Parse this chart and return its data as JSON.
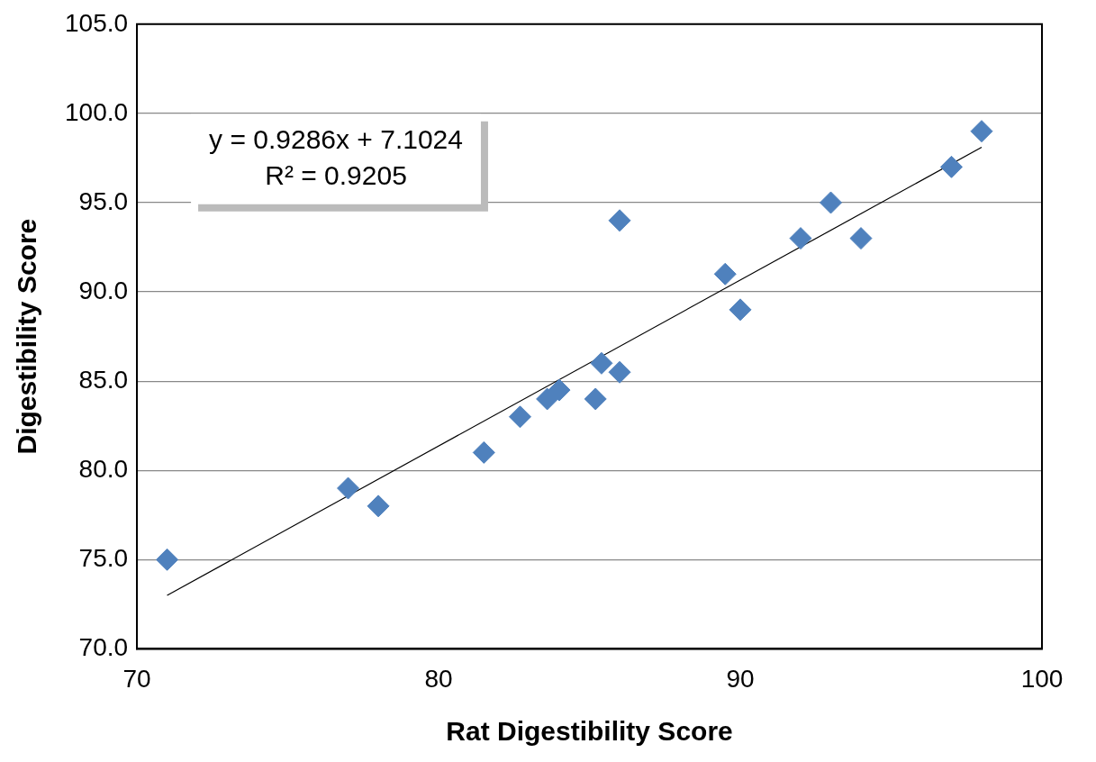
{
  "chart_data": {
    "type": "scatter",
    "xlabel": "Rat Digestibility Score",
    "ylabel": "Digestibility Score",
    "series": [
      {
        "type": "scatter",
        "color": "#4f81bd",
        "marker": "diamond",
        "x": [
          71,
          77,
          78,
          81.5,
          82.7,
          83.6,
          84,
          85.2,
          85.4,
          86,
          86,
          89.5,
          90,
          92,
          93,
          94,
          97,
          98
        ],
        "values": [
          75,
          79,
          78,
          81,
          83,
          84,
          84.5,
          84,
          86,
          85.5,
          94,
          91,
          89,
          93,
          95,
          93,
          97,
          99
        ]
      },
      {
        "type": "line",
        "color": "#000000",
        "marker": "none",
        "x": [
          71,
          98
        ],
        "values": [
          73.0,
          98.1
        ]
      }
    ],
    "xlim": [
      70,
      100
    ],
    "xticks": [
      70,
      80,
      90,
      100
    ],
    "ylim": [
      70,
      105
    ],
    "yticks": [
      {
        "value": 70,
        "label": "70.0"
      },
      {
        "value": 75,
        "label": "75.0"
      },
      {
        "value": 80,
        "label": "80.0"
      },
      {
        "value": 85,
        "label": "85.0"
      },
      {
        "value": 90,
        "label": "90.0"
      },
      {
        "value": 95,
        "label": "95.0"
      },
      {
        "value": 100,
        "label": "100.0"
      },
      {
        "value": 105,
        "label": "105.0"
      }
    ],
    "grid": "y",
    "legend": false,
    "annotations": [
      "y = 0.9286x + 7.1024",
      "R² = 0.9205"
    ]
  }
}
